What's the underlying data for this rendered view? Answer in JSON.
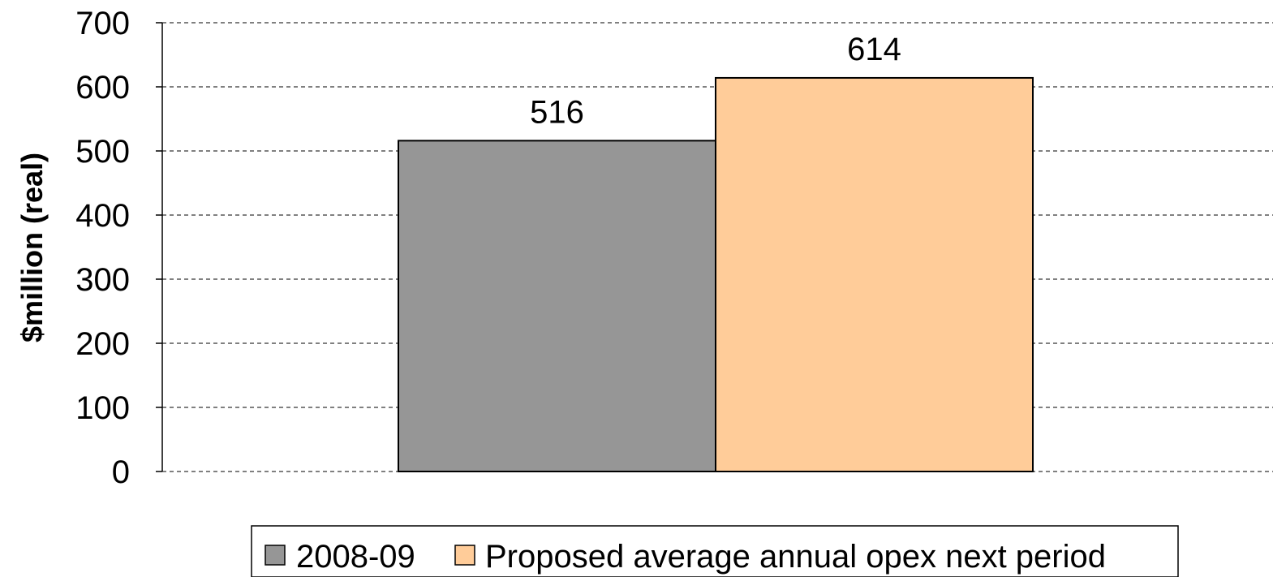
{
  "chart_data": {
    "type": "bar",
    "categories": [
      ""
    ],
    "series": [
      {
        "name": "2008-09",
        "values": [
          516
        ],
        "color": "#969696"
      },
      {
        "name": "Proposed average annual opex next period",
        "values": [
          614
        ],
        "color": "#ffcc99"
      }
    ],
    "data_labels": [
      "516",
      "614"
    ],
    "title": "",
    "xlabel": "",
    "ylabel": "$million (real)",
    "ylim": [
      0,
      700
    ],
    "yticks": [
      "0",
      "100",
      "200",
      "300",
      "400",
      "500",
      "600",
      "700"
    ],
    "grid": true,
    "legend_position": "bottom"
  }
}
